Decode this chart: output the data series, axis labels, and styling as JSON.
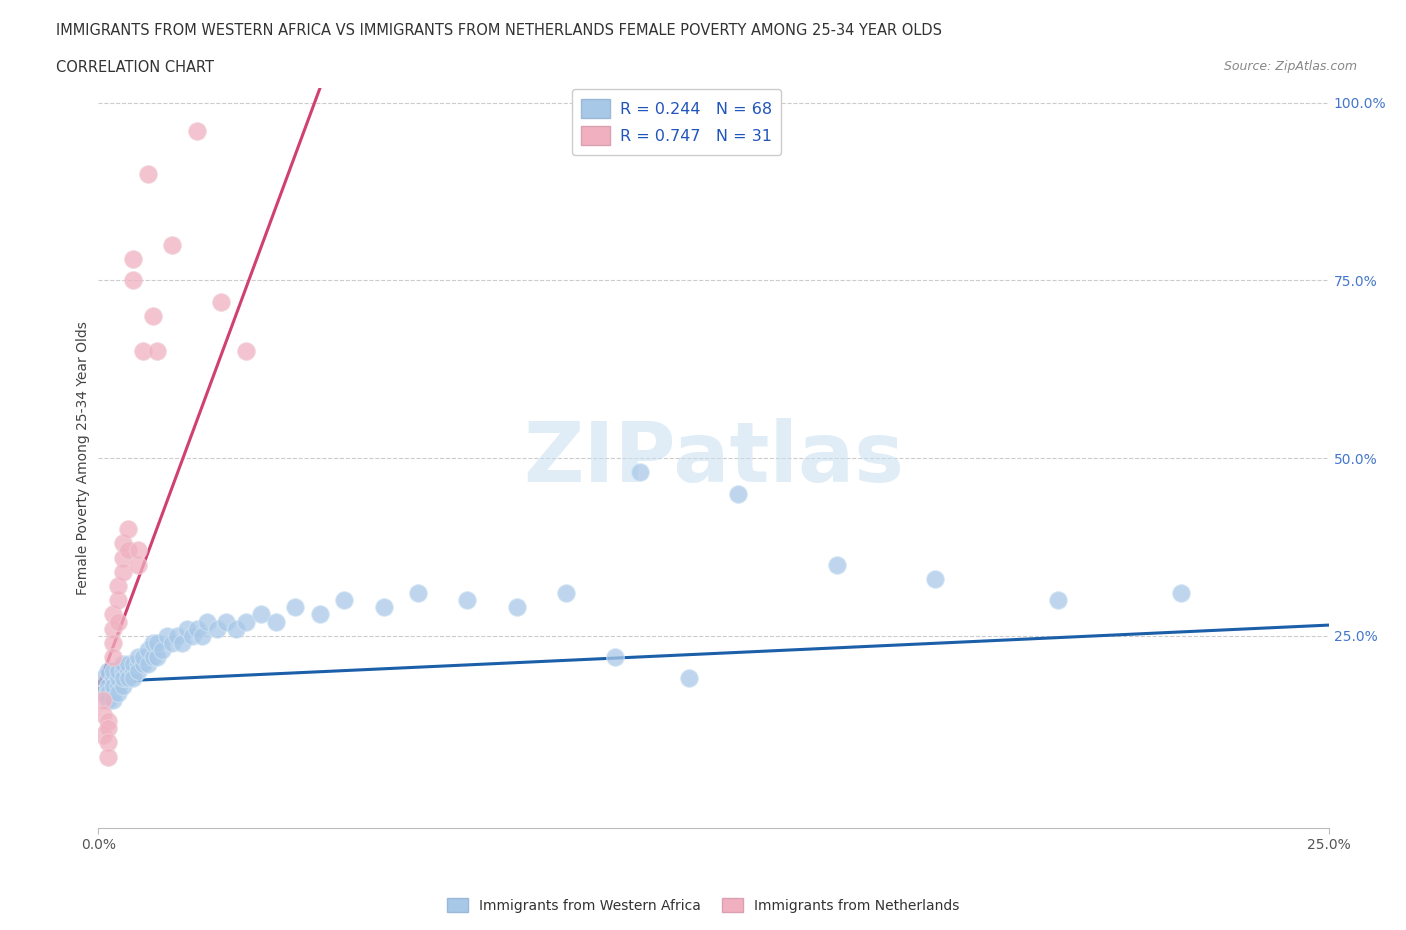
{
  "title_line1": "IMMIGRANTS FROM WESTERN AFRICA VS IMMIGRANTS FROM NETHERLANDS FEMALE POVERTY AMONG 25-34 YEAR OLDS",
  "title_line2": "CORRELATION CHART",
  "source_text": "Source: ZipAtlas.com",
  "ylabel": "Female Poverty Among 25-34 Year Olds",
  "xlim": [
    0.0,
    0.25
  ],
  "ylim": [
    -0.02,
    1.02
  ],
  "ytick_positions": [
    0.25,
    0.5,
    0.75,
    1.0
  ],
  "ytick_labels": [
    "25.0%",
    "50.0%",
    "75.0%",
    "100.0%"
  ],
  "xtick_positions": [
    0.0,
    0.25
  ],
  "xtick_labels": [
    "0.0%",
    "25.0%"
  ],
  "watermark_text": "ZIPatlas",
  "legend_entry1": "R = 0.244   N = 68",
  "legend_entry2": "R = 0.747   N = 31",
  "legend_label1": "Immigrants from Western Africa",
  "legend_label2": "Immigrants from Netherlands",
  "color_blue": "#a8c8e8",
  "color_pink": "#f0b0c0",
  "line_blue": "#1a5fa8",
  "line_pink": "#d04070",
  "title_color": "#333333",
  "source_color": "#888888",
  "ylabel_color": "#444444",
  "ytick_color": "#4477cc",
  "xtick_color": "#555555",
  "grid_color": "#cccccc",
  "blue_scatter_x": [
    0.001,
    0.001,
    0.002,
    0.002,
    0.002,
    0.002,
    0.003,
    0.003,
    0.003,
    0.003,
    0.003,
    0.004,
    0.004,
    0.004,
    0.004,
    0.005,
    0.005,
    0.005,
    0.005,
    0.006,
    0.006,
    0.006,
    0.007,
    0.007,
    0.007,
    0.008,
    0.008,
    0.008,
    0.009,
    0.009,
    0.01,
    0.01,
    0.011,
    0.011,
    0.012,
    0.012,
    0.013,
    0.014,
    0.015,
    0.016,
    0.017,
    0.018,
    0.019,
    0.02,
    0.021,
    0.022,
    0.024,
    0.026,
    0.028,
    0.03,
    0.033,
    0.036,
    0.04,
    0.045,
    0.05,
    0.058,
    0.065,
    0.075,
    0.085,
    0.095,
    0.11,
    0.13,
    0.15,
    0.17,
    0.195,
    0.22,
    0.105,
    0.12
  ],
  "blue_scatter_y": [
    0.19,
    0.17,
    0.18,
    0.17,
    0.2,
    0.16,
    0.19,
    0.17,
    0.18,
    0.2,
    0.16,
    0.18,
    0.19,
    0.17,
    0.2,
    0.18,
    0.2,
    0.19,
    0.21,
    0.2,
    0.19,
    0.21,
    0.2,
    0.21,
    0.19,
    0.21,
    0.22,
    0.2,
    0.21,
    0.22,
    0.21,
    0.23,
    0.22,
    0.24,
    0.22,
    0.24,
    0.23,
    0.25,
    0.24,
    0.25,
    0.24,
    0.26,
    0.25,
    0.26,
    0.25,
    0.27,
    0.26,
    0.27,
    0.26,
    0.27,
    0.28,
    0.27,
    0.29,
    0.28,
    0.3,
    0.29,
    0.31,
    0.3,
    0.29,
    0.31,
    0.48,
    0.45,
    0.35,
    0.33,
    0.3,
    0.31,
    0.22,
    0.19
  ],
  "pink_scatter_x": [
    0.001,
    0.001,
    0.001,
    0.002,
    0.002,
    0.002,
    0.002,
    0.003,
    0.003,
    0.003,
    0.003,
    0.004,
    0.004,
    0.004,
    0.005,
    0.005,
    0.005,
    0.006,
    0.006,
    0.007,
    0.007,
    0.008,
    0.008,
    0.009,
    0.01,
    0.011,
    0.012,
    0.015,
    0.02,
    0.025,
    0.03
  ],
  "pink_scatter_y": [
    0.16,
    0.14,
    0.11,
    0.13,
    0.12,
    0.1,
    0.08,
    0.28,
    0.26,
    0.24,
    0.22,
    0.3,
    0.27,
    0.32,
    0.36,
    0.34,
    0.38,
    0.4,
    0.37,
    0.78,
    0.75,
    0.35,
    0.37,
    0.65,
    0.9,
    0.7,
    0.65,
    0.8,
    0.96,
    0.72,
    0.65
  ],
  "blue_line_x": [
    0.0,
    0.25
  ],
  "blue_line_y": [
    0.185,
    0.265
  ],
  "pink_line_x": [
    -0.001,
    0.045
  ],
  "pink_line_y": [
    0.16,
    1.02
  ]
}
